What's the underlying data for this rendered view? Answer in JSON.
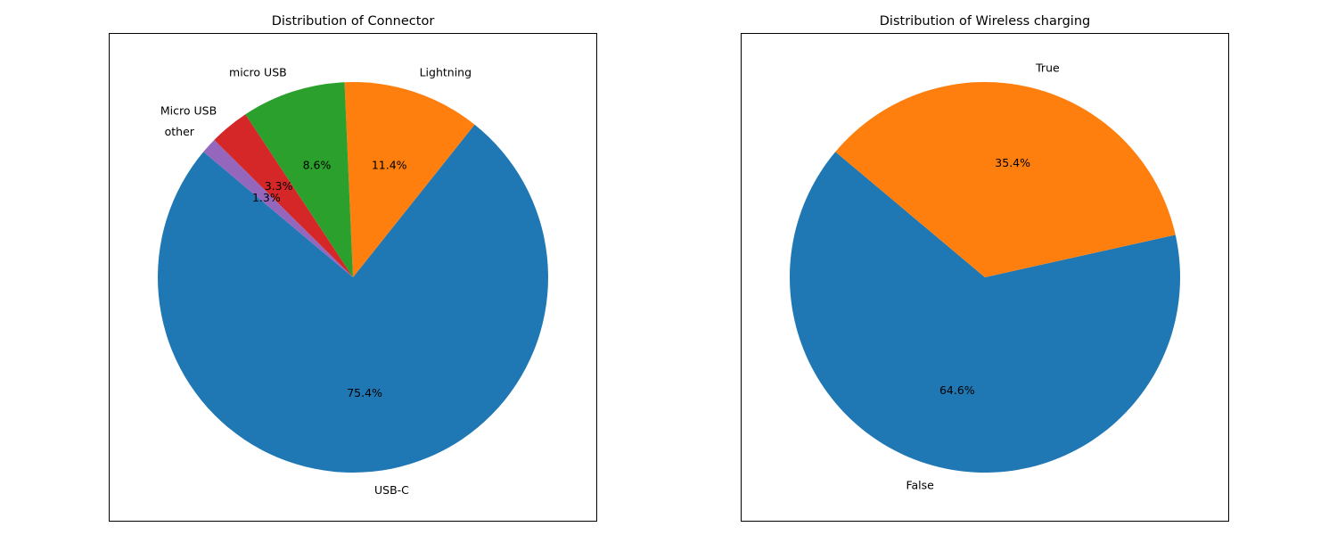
{
  "chart_data": [
    {
      "type": "pie",
      "title": "Distribution of Connector",
      "start_angle_deg": 140,
      "direction": "counterclockwise",
      "slices": [
        {
          "label": "USB-C",
          "value": 75.4,
          "pct_label": "75.4%",
          "color": "#1f77b4"
        },
        {
          "label": "Lightning",
          "value": 11.4,
          "pct_label": "11.4%",
          "color": "#ff7f0e"
        },
        {
          "label": "micro USB",
          "value": 8.6,
          "pct_label": "8.6%",
          "color": "#2ca02c"
        },
        {
          "label": "Micro USB",
          "value": 3.3,
          "pct_label": "3.3%",
          "color": "#d62728"
        },
        {
          "label": "other",
          "value": 1.3,
          "pct_label": "1.3%",
          "color": "#9467bd"
        }
      ]
    },
    {
      "type": "pie",
      "title": "Distribution of Wireless charging",
      "start_angle_deg": 140,
      "direction": "counterclockwise",
      "slices": [
        {
          "label": "False",
          "value": 64.6,
          "pct_label": "64.6%",
          "color": "#1f77b4"
        },
        {
          "label": "True",
          "value": 35.4,
          "pct_label": "35.4%",
          "color": "#ff7f0e"
        }
      ]
    }
  ]
}
